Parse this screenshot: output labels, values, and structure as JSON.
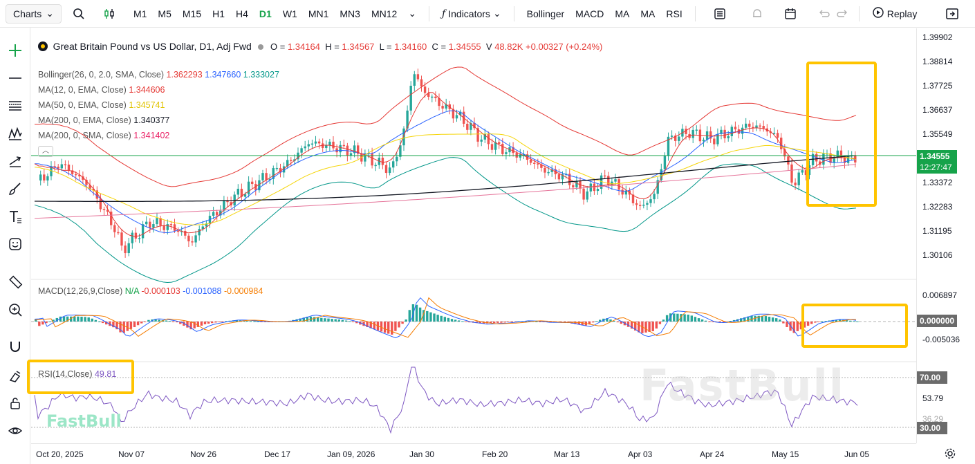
{
  "toolbar": {
    "charts_label": "Charts",
    "timeframes": [
      "M1",
      "M5",
      "M15",
      "H1",
      "H4",
      "D1",
      "W1",
      "MN1",
      "MN3",
      "MN12"
    ],
    "active_timeframe": "D1",
    "indicators_label": "Indicators",
    "quick_indicators": [
      "Bollinger",
      "MACD",
      "MA",
      "MA",
      "RSI"
    ],
    "replay_label": "Replay"
  },
  "legend": {
    "symbol": "Great Britain Pound vs US Dollar, D1, Adj Fwd",
    "open_label": "O =",
    "open": "1.34164",
    "high_label": "H =",
    "high": "1.34567",
    "low_label": "L =",
    "low": "1.34160",
    "close_label": "C =",
    "close": "1.34555",
    "volume_label": "V",
    "volume": "48.82K",
    "change": "+0.00327 (+0.24%)",
    "indicators": [
      {
        "name": "Bollinger(26, 0, 2.0, SMA, Close)",
        "values": [
          "1.362293",
          "1.347660",
          "1.333027"
        ],
        "colors": [
          "#e53935",
          "#2962ff",
          "#009688"
        ]
      },
      {
        "name": "MA(12, 0, EMA, Close)",
        "values": [
          "1.344606"
        ],
        "colors": [
          "#e53935"
        ]
      },
      {
        "name": "MA(50, 0, EMA, Close)",
        "values": [
          "1.345741"
        ],
        "colors": [
          "#f5d50a"
        ]
      },
      {
        "name": "MA(200, 0, EMA, Close)",
        "values": [
          "1.340377"
        ],
        "colors": [
          "#131722"
        ]
      },
      {
        "name": "MA(200, 0, SMA, Close)",
        "values": [
          "1.341402"
        ],
        "colors": [
          "#e91e63"
        ]
      }
    ]
  },
  "price_axis": {
    "labels": [
      "1.39902",
      "1.38814",
      "1.37725",
      "1.36637",
      "1.35549",
      "1.33372",
      "1.32283",
      "1.31195",
      "1.30106"
    ],
    "current_price": "1.34555",
    "countdown": "12:27:47"
  },
  "macd": {
    "label": "MACD(12,26,9,Close)",
    "values": [
      "N/A",
      "-0.000103",
      "-0.001088",
      "-0.000984"
    ],
    "axis": [
      "0.006897",
      "-0.005036"
    ],
    "current": "0.000000"
  },
  "rsi": {
    "label": "RSI(14,Close)",
    "value": "49.81",
    "axis_mid": "53.79",
    "level_high": "70.00",
    "level_low": "30.00",
    "partial_label": "36.29"
  },
  "time_axis": [
    "Oct 20, 2025",
    "Nov 07",
    "Nov 26",
    "Dec 17",
    "Jan 09, 2026",
    "Jan 30",
    "Feb 20",
    "Mar 13",
    "Apr 03",
    "Apr 24",
    "May 15",
    "Jun 05"
  ],
  "watermark": "FastBull",
  "logo": "FastBull",
  "colors": {
    "up": "#26a69a",
    "down": "#ef5350",
    "accent": "#16a34a",
    "highlight": "#ffc400"
  }
}
